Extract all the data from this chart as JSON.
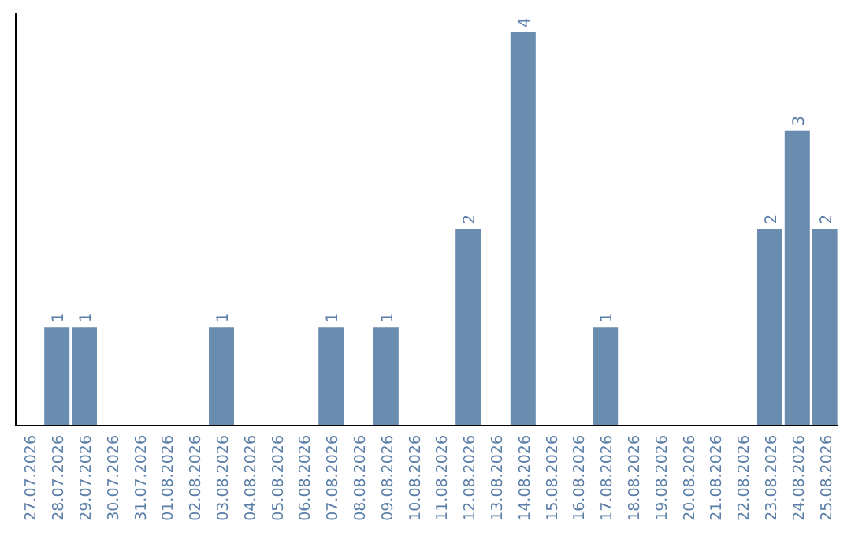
{
  "chart_data": {
    "type": "bar",
    "categories": [
      "27.07.2026",
      "28.07.2026",
      "29.07.2026",
      "30.07.2026",
      "31.07.2026",
      "01.08.2026",
      "02.08.2026",
      "03.08.2026",
      "04.08.2026",
      "05.08.2026",
      "06.08.2026",
      "07.08.2026",
      "08.08.2026",
      "09.08.2026",
      "10.08.2026",
      "11.08.2026",
      "12.08.2026",
      "13.08.2026",
      "14.08.2026",
      "15.08.2026",
      "16.08.2026",
      "17.08.2026",
      "18.08.2026",
      "19.08.2026",
      "20.08.2026",
      "21.08.2026",
      "22.08.2026",
      "23.08.2026",
      "24.08.2026",
      "25.08.2026"
    ],
    "values": [
      0,
      1,
      1,
      0,
      0,
      0,
      0,
      1,
      0,
      0,
      0,
      1,
      0,
      1,
      0,
      0,
      2,
      0,
      4,
      0,
      0,
      1,
      0,
      0,
      0,
      0,
      0,
      2,
      3,
      2
    ],
    "value_labels": [
      null,
      "1",
      "1",
      null,
      null,
      null,
      null,
      "1",
      null,
      null,
      null,
      "1",
      null,
      "1",
      null,
      null,
      "2",
      null,
      "4",
      null,
      null,
      "1",
      null,
      null,
      null,
      null,
      null,
      "2",
      "3",
      "2"
    ],
    "color": "#6a8caf",
    "tick_labels": "x"
  }
}
